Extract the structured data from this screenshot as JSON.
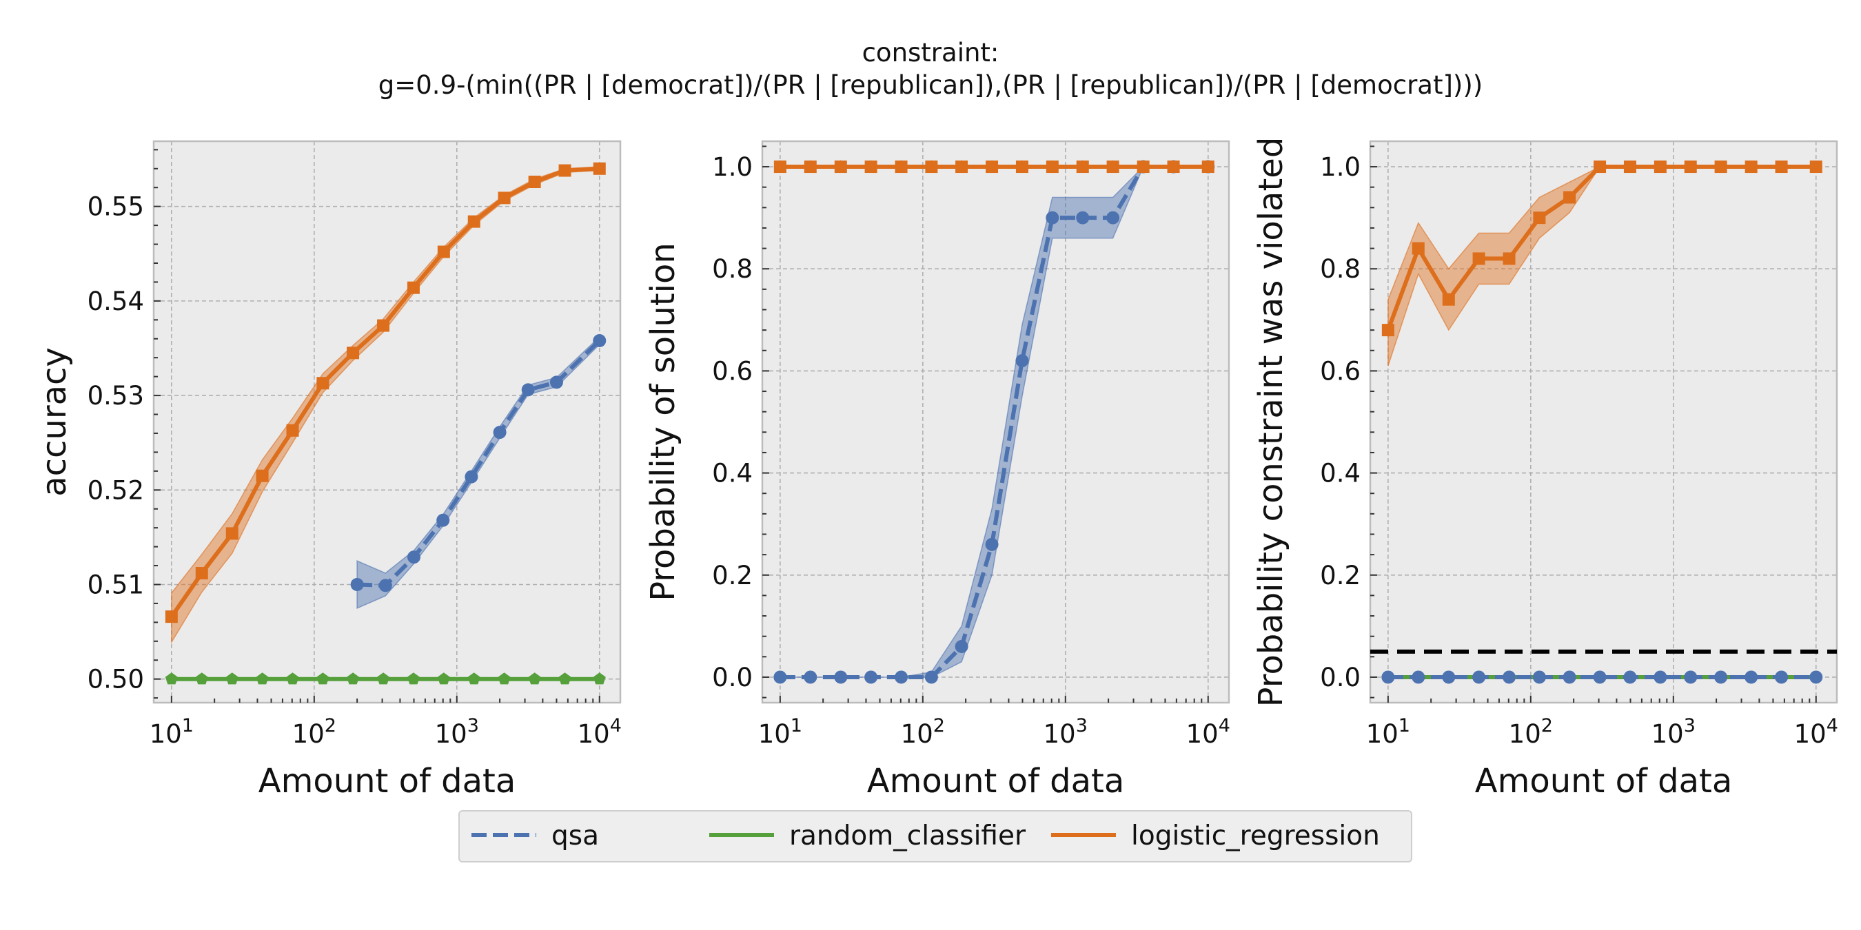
{
  "figure": {
    "title_line1": "constraint:",
    "title_line2": "g=0.9-(min((PR | [democrat])/(PR | [republican]),(PR | [republican])/(PR | [democrat])))",
    "legend": {
      "placement": "bottom-center",
      "entries": [
        {
          "label": "qsa",
          "color": "#4c72b0",
          "dash": true
        },
        {
          "label": "random_classifier",
          "color": "#55a03b",
          "dash": false
        },
        {
          "label": "logistic_regression",
          "color": "#dd6e1c",
          "dash": false
        }
      ]
    },
    "colors": {
      "qsa": "#4c72b0",
      "random_classifier": "#55a03b",
      "logistic_regression": "#dd6e1c",
      "panel_background": "#ebebeb",
      "grid": "#b0b0b0",
      "constraint_line": "#000000"
    }
  },
  "chart_data": [
    {
      "type": "line",
      "xlabel": "Amount of data",
      "ylabel": "accuracy",
      "xscale": "log",
      "xlim": [
        7.5,
        14000
      ],
      "ylim": [
        0.4975,
        0.5569
      ],
      "yticks": [
        0.5,
        0.51,
        0.52,
        0.53,
        0.54,
        0.55
      ],
      "ytick_labels": [
        "0.50",
        "0.51",
        "0.52",
        "0.53",
        "0.54",
        "0.55"
      ],
      "grid": true,
      "series": [
        {
          "name": "qsa",
          "style": "dashed",
          "marker": "circle",
          "x": [
            200,
            316,
            500,
            800,
            1265,
            2000,
            3160,
            5000,
            10000
          ],
          "y": [
            0.51,
            0.5099,
            0.5129,
            0.5168,
            0.5214,
            0.5261,
            0.5306,
            0.5314,
            0.5358
          ],
          "band_low": [
            0.5075,
            0.5088,
            0.5122,
            0.5162,
            0.5208,
            0.5255,
            0.5301,
            0.5309,
            0.5354
          ],
          "band_high": [
            0.5125,
            0.5112,
            0.5136,
            0.5174,
            0.522,
            0.5267,
            0.5311,
            0.5319,
            0.5362
          ]
        },
        {
          "name": "random_classifier",
          "style": "solid",
          "marker": "pentagon",
          "x": [
            10,
            16.3,
            26.6,
            43.3,
            70.6,
            115,
            187,
            305,
            497,
            810,
            1320,
            2150,
            3510,
            5720,
            10000
          ],
          "y": [
            0.5,
            0.5,
            0.5,
            0.5,
            0.5,
            0.5,
            0.5,
            0.5,
            0.5,
            0.5,
            0.5,
            0.5,
            0.5,
            0.5,
            0.5
          ]
        },
        {
          "name": "logistic_regression",
          "style": "solid",
          "marker": "square",
          "x": [
            10,
            16.3,
            26.6,
            43.3,
            70.6,
            115,
            187,
            305,
            497,
            810,
            1320,
            2150,
            3510,
            5720,
            10000
          ],
          "y": [
            0.5066,
            0.5112,
            0.5154,
            0.5215,
            0.5263,
            0.5313,
            0.5345,
            0.5374,
            0.5414,
            0.5452,
            0.5484,
            0.5509,
            0.5526,
            0.5538,
            0.554
          ],
          "band_low": [
            0.5039,
            0.5092,
            0.5133,
            0.5198,
            0.525,
            0.5303,
            0.5337,
            0.5367,
            0.5408,
            0.5447,
            0.548,
            0.5506,
            0.5523,
            0.5536,
            0.5538
          ],
          "band_high": [
            0.5091,
            0.5132,
            0.5175,
            0.5232,
            0.5276,
            0.5323,
            0.5353,
            0.5381,
            0.542,
            0.5457,
            0.5488,
            0.5512,
            0.5529,
            0.554,
            0.5542
          ]
        }
      ]
    },
    {
      "type": "line",
      "xlabel": "Amount of data",
      "ylabel": "Probability of solution",
      "xscale": "log",
      "xlim": [
        7.5,
        14000
      ],
      "ylim": [
        -0.05,
        1.05
      ],
      "yticks": [
        0.0,
        0.2,
        0.4,
        0.6,
        0.8,
        1.0
      ],
      "ytick_labels": [
        "0.0",
        "0.2",
        "0.4",
        "0.6",
        "0.8",
        "1.0"
      ],
      "grid": true,
      "series": [
        {
          "name": "qsa",
          "style": "dashed",
          "marker": "circle",
          "x": [
            10,
            16.3,
            26.6,
            43.3,
            70.6,
            115,
            187,
            305,
            497,
            810,
            1320,
            2150,
            3510,
            5720,
            10000
          ],
          "y": [
            0,
            0,
            0,
            0,
            0,
            0,
            0.06,
            0.26,
            0.62,
            0.9,
            0.9,
            0.9,
            1.0,
            1.0,
            1.0
          ],
          "band_low": [
            0,
            0,
            0,
            0,
            0,
            0,
            0.03,
            0.2,
            0.55,
            0.86,
            0.86,
            0.86,
            1.0,
            1.0,
            1.0
          ],
          "band_high": [
            0,
            0,
            0,
            0,
            0,
            0.01,
            0.1,
            0.33,
            0.69,
            0.94,
            0.94,
            0.94,
            1.0,
            1.0,
            1.0
          ]
        },
        {
          "name": "random_classifier",
          "style": "solid",
          "marker": "pentagon",
          "x": [
            10,
            16.3,
            26.6,
            43.3,
            70.6,
            115,
            187,
            305,
            497,
            810,
            1320,
            2150,
            3510,
            5720,
            10000
          ],
          "y": [
            1,
            1,
            1,
            1,
            1,
            1,
            1,
            1,
            1,
            1,
            1,
            1,
            1,
            1,
            1
          ]
        },
        {
          "name": "logistic_regression",
          "style": "solid",
          "marker": "square",
          "x": [
            10,
            16.3,
            26.6,
            43.3,
            70.6,
            115,
            187,
            305,
            497,
            810,
            1320,
            2150,
            3510,
            5720,
            10000
          ],
          "y": [
            1,
            1,
            1,
            1,
            1,
            1,
            1,
            1,
            1,
            1,
            1,
            1,
            1,
            1,
            1
          ]
        }
      ]
    },
    {
      "type": "line",
      "xlabel": "Amount of data",
      "ylabel": "Probability constraint was violated",
      "xscale": "log",
      "xlim": [
        7.5,
        14000
      ],
      "ylim": [
        -0.05,
        1.05
      ],
      "yticks": [
        0.0,
        0.2,
        0.4,
        0.6,
        0.8,
        1.0
      ],
      "ytick_labels": [
        "0.0",
        "0.2",
        "0.4",
        "0.6",
        "0.8",
        "1.0"
      ],
      "grid": true,
      "hline": {
        "y": 0.05,
        "style": "dashed",
        "color": "#000000"
      },
      "series": [
        {
          "name": "qsa",
          "style": "dashed",
          "marker": "circle",
          "x": [
            10,
            16.3,
            26.6,
            43.3,
            70.6,
            115,
            187,
            305,
            497,
            810,
            1320,
            2150,
            3510,
            5720,
            10000
          ],
          "y": [
            0,
            0,
            0,
            0,
            0,
            0,
            0,
            0,
            0,
            0,
            0,
            0,
            0,
            0,
            0
          ]
        },
        {
          "name": "random_classifier",
          "style": "solid",
          "marker": "pentagon",
          "x": [
            10,
            16.3,
            26.6,
            43.3,
            70.6,
            115,
            187,
            305,
            497,
            810,
            1320,
            2150,
            3510,
            5720,
            10000
          ],
          "y": [
            0,
            0,
            0,
            0,
            0,
            0,
            0,
            0,
            0,
            0,
            0,
            0,
            0,
            0,
            0
          ]
        },
        {
          "name": "logistic_regression",
          "style": "solid",
          "marker": "square",
          "x": [
            10,
            16.3,
            26.6,
            43.3,
            70.6,
            115,
            187,
            305,
            497,
            810,
            1320,
            2150,
            3510,
            5720,
            10000
          ],
          "y": [
            0.68,
            0.84,
            0.74,
            0.82,
            0.82,
            0.9,
            0.94,
            1.0,
            1.0,
            1.0,
            1.0,
            1.0,
            1.0,
            1.0,
            1.0
          ],
          "band_low": [
            0.61,
            0.79,
            0.68,
            0.77,
            0.77,
            0.86,
            0.91,
            1.0,
            1.0,
            1.0,
            1.0,
            1.0,
            1.0,
            1.0,
            1.0
          ],
          "band_high": [
            0.74,
            0.89,
            0.8,
            0.87,
            0.87,
            0.94,
            0.97,
            1.0,
            1.0,
            1.0,
            1.0,
            1.0,
            1.0,
            1.0,
            1.0
          ]
        }
      ]
    }
  ]
}
